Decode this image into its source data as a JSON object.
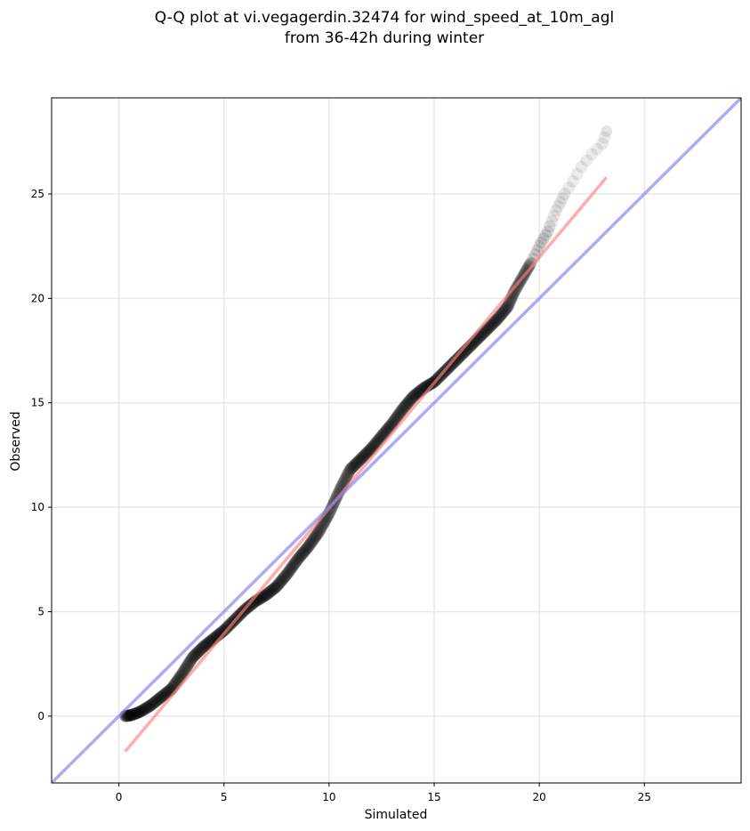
{
  "chart_data": {
    "type": "scatter",
    "title": "Q-Q plot at vi.vegagerdin.32474 for wind_speed_at_10m_agl\nfrom 36-42h during winter",
    "xlabel": "Simulated",
    "ylabel": "Observed",
    "xlim": [
      -3.2,
      29.6
    ],
    "ylim": [
      -3.2,
      29.6
    ],
    "xticks": [
      0,
      5,
      10,
      15,
      20,
      25
    ],
    "yticks": [
      0,
      5,
      10,
      15,
      20,
      25
    ],
    "grid": true,
    "quantile_curve": [
      [
        0.3,
        0.0
      ],
      [
        0.6,
        0.05
      ],
      [
        1.0,
        0.2
      ],
      [
        1.5,
        0.5
      ],
      [
        2.0,
        0.9
      ],
      [
        2.5,
        1.3
      ],
      [
        3.0,
        2.0
      ],
      [
        3.5,
        2.8
      ],
      [
        4.0,
        3.3
      ],
      [
        4.5,
        3.7
      ],
      [
        5.0,
        4.1
      ],
      [
        5.5,
        4.6
      ],
      [
        6.0,
        5.1
      ],
      [
        6.5,
        5.5
      ],
      [
        7.0,
        5.8
      ],
      [
        7.5,
        6.2
      ],
      [
        8.0,
        6.8
      ],
      [
        8.5,
        7.5
      ],
      [
        9.0,
        8.1
      ],
      [
        9.5,
        8.8
      ],
      [
        10.0,
        9.7
      ],
      [
        10.5,
        10.8
      ],
      [
        11.0,
        11.8
      ],
      [
        11.5,
        12.3
      ],
      [
        12.0,
        12.8
      ],
      [
        12.5,
        13.4
      ],
      [
        13.0,
        14.0
      ],
      [
        13.5,
        14.7
      ],
      [
        14.0,
        15.3
      ],
      [
        14.5,
        15.7
      ],
      [
        15.0,
        16.0
      ],
      [
        15.5,
        16.5
      ],
      [
        16.0,
        17.0
      ],
      [
        16.5,
        17.5
      ],
      [
        17.0,
        18.0
      ],
      [
        17.5,
        18.5
      ],
      [
        18.0,
        19.0
      ],
      [
        18.5,
        19.6
      ],
      [
        18.8,
        20.3
      ],
      [
        19.2,
        21.0
      ],
      [
        19.6,
        21.7
      ],
      [
        20.0,
        22.5
      ],
      [
        20.4,
        23.2
      ],
      [
        20.8,
        24.2
      ],
      [
        21.2,
        25.0
      ],
      [
        21.6,
        25.6
      ],
      [
        22.0,
        26.3
      ],
      [
        22.5,
        26.9
      ],
      [
        23.0,
        27.4
      ],
      [
        23.2,
        28.0
      ]
    ],
    "series": [
      {
        "kind": "fit-line",
        "x": [
          0.3,
          23.2
        ],
        "y": [
          -1.7,
          25.8
        ],
        "color": "#ff8080"
      },
      {
        "kind": "identity-line",
        "x": [
          -3.2,
          29.6
        ],
        "y": [
          -3.2,
          29.6
        ],
        "color": "#8080ee"
      }
    ]
  }
}
